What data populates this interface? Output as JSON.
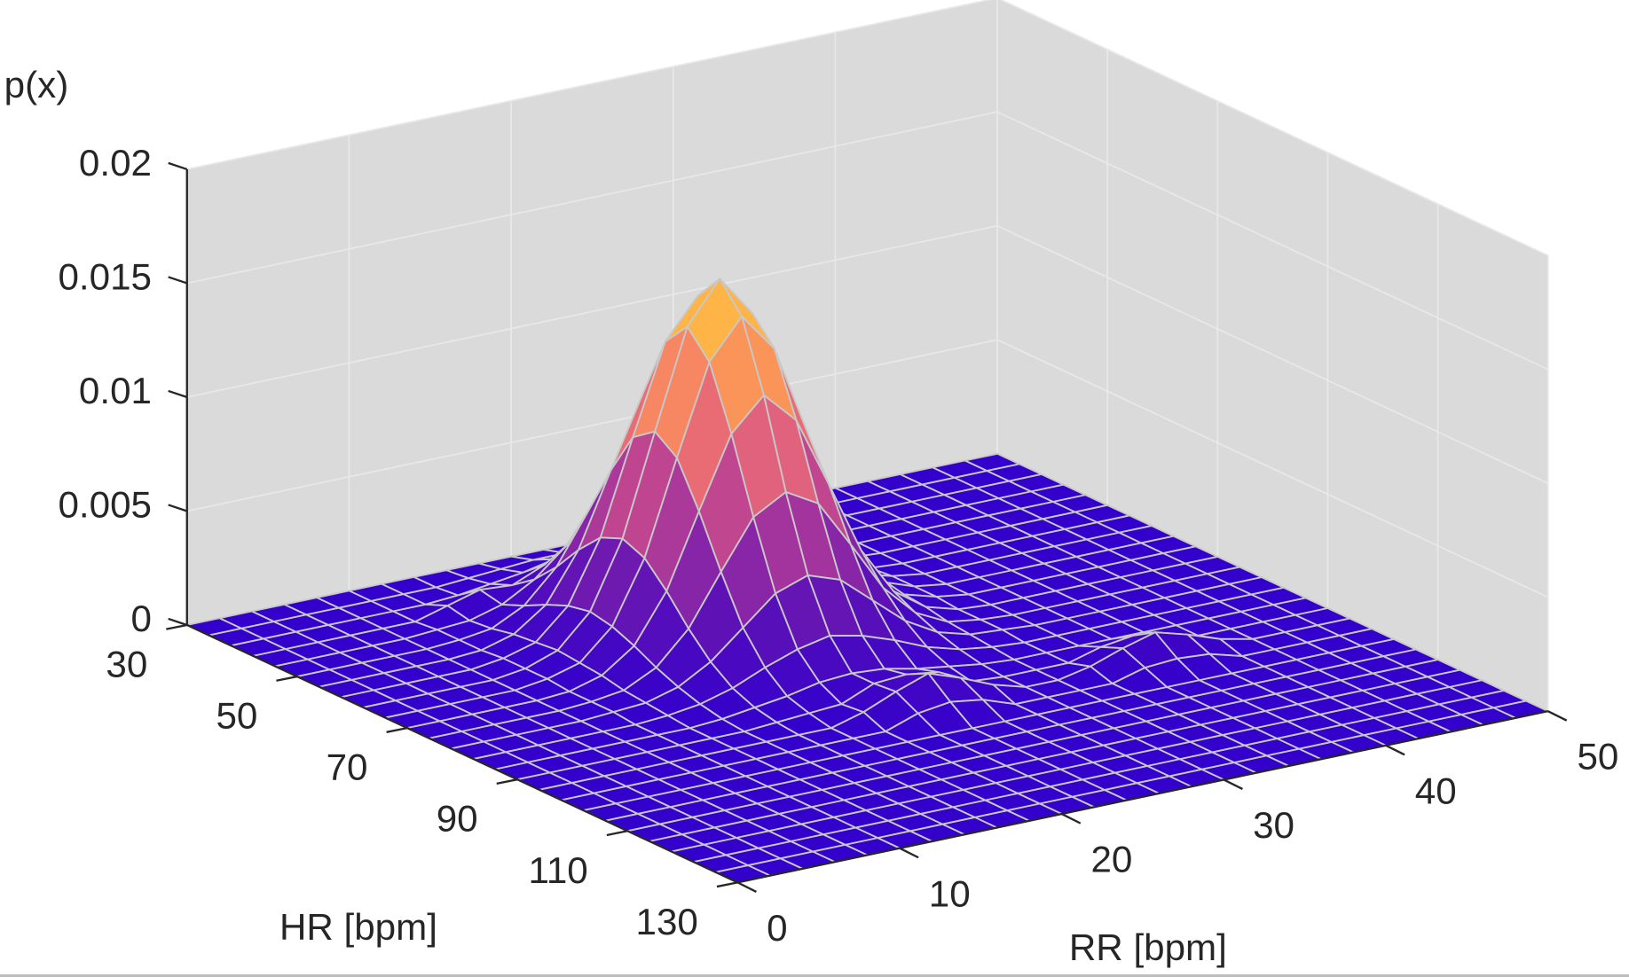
{
  "chart_data": {
    "type": "surface",
    "title": "",
    "xlabel": "HR [bpm]",
    "ylabel": "RR [bpm]",
    "zlabel": "p(x)",
    "xlim": [
      30,
      130
    ],
    "ylim": [
      0,
      50
    ],
    "zlim": [
      0,
      0.02
    ],
    "grid": true,
    "x_ticks": [
      "30",
      "50",
      "70",
      "90",
      "110",
      "130"
    ],
    "x_tick_values": [
      30,
      50,
      70,
      90,
      110,
      130
    ],
    "y_ticks": [
      "0",
      "10",
      "20",
      "30",
      "40",
      "50"
    ],
    "y_tick_values": [
      0,
      10,
      20,
      30,
      40,
      50
    ],
    "z_ticks": [
      "0",
      "0.005",
      "0.01",
      "0.015",
      "0.02"
    ],
    "z_tick_values": [
      0,
      0.005,
      0.01,
      0.015,
      0.02
    ],
    "x": [
      30,
      34,
      38,
      42,
      46,
      50,
      54,
      58,
      62,
      66,
      70,
      74,
      78,
      82,
      86,
      90,
      94,
      98,
      102,
      106,
      110,
      114,
      118,
      122,
      126,
      130
    ],
    "y": [
      0,
      2,
      4,
      6,
      8,
      10,
      12,
      14,
      16,
      18,
      20,
      22,
      24,
      26,
      28,
      30,
      32,
      34,
      36,
      38,
      40,
      42,
      44,
      46,
      48,
      50
    ],
    "z": [
      [
        0,
        0,
        0,
        0,
        0,
        0,
        0,
        0,
        0,
        0,
        0,
        0,
        0,
        0,
        0,
        0,
        0,
        0,
        0,
        0,
        0,
        0,
        0,
        0,
        0,
        0
      ],
      [
        0,
        0,
        0,
        0,
        0,
        0,
        0,
        0,
        0.0001,
        0.0002,
        0.0003,
        0.0003,
        0.0003,
        0.0002,
        0.0001,
        0,
        0,
        0,
        0,
        0,
        0,
        0,
        0,
        0,
        0,
        0
      ],
      [
        0,
        0,
        0,
        0,
        0,
        0,
        0,
        0.0001,
        0.0003,
        0.0005,
        0.0008,
        0.0009,
        0.0008,
        0.0005,
        0.0003,
        0.0001,
        0,
        0,
        0,
        0,
        0,
        0,
        0,
        0,
        0,
        0
      ],
      [
        0,
        0,
        0,
        0,
        0,
        0,
        0.0004,
        0.0008,
        0.0007,
        0.0013,
        0.0018,
        0.0021,
        0.0018,
        0.0013,
        0.0007,
        0.0003,
        0.0001,
        0,
        0,
        0,
        0,
        0,
        0,
        0,
        0,
        0
      ],
      [
        0,
        0,
        0,
        0,
        0,
        0.0001,
        0.0002,
        0.0006,
        0.0014,
        0.0026,
        0.0038,
        0.0043,
        0.0038,
        0.0026,
        0.0014,
        0.0006,
        0.0002,
        0.0001,
        0,
        0,
        0,
        0,
        0,
        0,
        0,
        0
      ],
      [
        0,
        0,
        0,
        0,
        0,
        0.0001,
        0.0003,
        0.001,
        0.0024,
        0.0046,
        0.0067,
        0.0075,
        0.0067,
        0.0046,
        0.0024,
        0.001,
        0.0003,
        0.0001,
        0,
        0,
        0,
        0,
        0,
        0,
        0,
        0
      ],
      [
        0,
        0,
        0,
        0,
        0,
        0.0001,
        0.0005,
        0.0015,
        0.0036,
        0.0068,
        0.0099,
        0.0113,
        0.0099,
        0.0068,
        0.0036,
        0.0015,
        0.0005,
        0.0001,
        0,
        0,
        0,
        0,
        0,
        0,
        0,
        0
      ],
      [
        0,
        0,
        0,
        0,
        0,
        0.0002,
        0.0006,
        0.0019,
        0.0046,
        0.0087,
        0.0126,
        0.0143,
        0.0126,
        0.0087,
        0.0046,
        0.0019,
        0.0006,
        0.0002,
        0,
        0,
        0,
        0,
        0,
        0,
        0,
        0
      ],
      [
        0,
        0,
        0,
        0,
        0,
        0.0002,
        0.0007,
        0.0021,
        0.005,
        0.0094,
        0.0137,
        0.0155,
        0.0137,
        0.0094,
        0.005,
        0.0021,
        0.0007,
        0.0002,
        0,
        0,
        0,
        0,
        0,
        0,
        0,
        0
      ],
      [
        0,
        0,
        0,
        0,
        0,
        0.0002,
        0.0006,
        0.0019,
        0.0046,
        0.0087,
        0.0126,
        0.0143,
        0.0126,
        0.0087,
        0.0046,
        0.0019,
        0.0006,
        0.0002,
        0,
        0,
        0,
        0,
        0,
        0,
        0,
        0
      ],
      [
        0,
        0,
        0,
        0,
        0,
        0.0001,
        0.0005,
        0.0015,
        0.0036,
        0.0068,
        0.0099,
        0.0113,
        0.0099,
        0.0068,
        0.0036,
        0.0015,
        0.0005,
        0.0001,
        0,
        0,
        0,
        0,
        0,
        0,
        0,
        0
      ],
      [
        0,
        0,
        0,
        0,
        0,
        0.0001,
        0.0003,
        0.001,
        0.0024,
        0.0046,
        0.0067,
        0.0075,
        0.0067,
        0.0046,
        0.0024,
        0.001,
        0.0003,
        0.0001,
        0,
        0,
        0,
        0,
        0,
        0,
        0,
        0
      ],
      [
        0,
        0,
        0,
        0,
        0,
        0.0001,
        0.0002,
        0.0006,
        0.0014,
        0.0026,
        0.0038,
        0.0043,
        0.0038,
        0.0026,
        0.0014,
        0.0006,
        0.0002,
        0.0001,
        0,
        0,
        0,
        0,
        0,
        0,
        0,
        0
      ],
      [
        0,
        0,
        0,
        0,
        0,
        0,
        0.0001,
        0.0003,
        0.0007,
        0.0013,
        0.0018,
        0.0021,
        0.0018,
        0.0013,
        0.0007,
        0.0003,
        0.0001,
        0,
        0,
        0,
        0,
        0,
        0,
        0,
        0,
        0
      ],
      [
        0,
        0,
        0,
        0,
        0,
        0,
        0,
        0.0001,
        0.0003,
        0.0005,
        0.0008,
        0.0009,
        0.0008,
        0.0005,
        0.0003,
        0.0001,
        0,
        0,
        0,
        0,
        0,
        0,
        0,
        0,
        0,
        0
      ],
      [
        0,
        0,
        0,
        0,
        0,
        0,
        0,
        0,
        0.0001,
        0.0002,
        0.0003,
        0.0009,
        0.001,
        0.0008,
        0.0001,
        0,
        0,
        0,
        0.0004,
        0.0006,
        0.0004,
        0,
        0,
        0,
        0,
        0
      ],
      [
        0,
        0,
        0,
        0,
        0,
        0,
        0,
        0,
        0,
        0,
        0.0004,
        0.001,
        0.0015,
        0.001,
        0.0004,
        0,
        0,
        0.0003,
        0.0008,
        0.0012,
        0.0008,
        0.0003,
        0,
        0,
        0,
        0
      ],
      [
        0,
        0,
        0,
        0,
        0,
        0,
        0,
        0,
        0,
        0,
        0,
        0.0005,
        0.0007,
        0.0005,
        0,
        0,
        0,
        0,
        0.0004,
        0.0005,
        0.0004,
        0,
        0,
        0,
        0,
        0
      ],
      [
        0,
        0,
        0,
        0,
        0,
        0,
        0,
        0,
        0,
        0,
        0,
        0,
        0,
        0,
        0,
        0,
        0,
        0,
        0,
        0,
        0,
        0,
        0,
        0,
        0,
        0
      ],
      [
        0,
        0,
        0,
        0,
        0,
        0,
        0,
        0,
        0,
        0,
        0,
        0,
        0,
        0,
        0,
        0,
        0,
        0,
        0,
        0,
        0,
        0,
        0,
        0,
        0,
        0
      ],
      [
        0,
        0,
        0,
        0,
        0,
        0,
        0,
        0,
        0,
        0,
        0,
        0,
        0,
        0,
        0,
        0,
        0,
        0,
        0,
        0,
        0,
        0,
        0,
        0,
        0,
        0
      ],
      [
        0,
        0,
        0,
        0,
        0,
        0,
        0,
        0,
        0,
        0,
        0,
        0,
        0,
        0,
        0,
        0,
        0,
        0,
        0,
        0,
        0,
        0,
        0,
        0,
        0,
        0
      ],
      [
        0,
        0,
        0,
        0,
        0,
        0,
        0,
        0,
        0,
        0,
        0,
        0,
        0,
        0,
        0,
        0,
        0,
        0,
        0,
        0,
        0,
        0,
        0,
        0,
        0,
        0
      ],
      [
        0,
        0,
        0,
        0,
        0,
        0,
        0,
        0,
        0,
        0,
        0,
        0,
        0,
        0,
        0,
        0,
        0,
        0,
        0,
        0,
        0,
        0,
        0,
        0,
        0,
        0
      ],
      [
        0,
        0,
        0,
        0,
        0,
        0,
        0,
        0,
        0,
        0,
        0,
        0,
        0,
        0,
        0,
        0,
        0,
        0,
        0,
        0,
        0,
        0,
        0,
        0,
        0,
        0
      ],
      [
        0,
        0,
        0,
        0,
        0,
        0,
        0,
        0,
        0,
        0,
        0,
        0,
        0,
        0,
        0,
        0,
        0,
        0,
        0,
        0,
        0,
        0,
        0,
        0,
        0,
        0
      ]
    ],
    "colormap": [
      "#3300cc",
      "#5a10b8",
      "#9a2fa0",
      "#d0508a",
      "#f57a6a",
      "#fda24f",
      "#ffcd3a"
    ],
    "edge_color": "#c8c8c8",
    "wall_color": "#dadada",
    "wall_grid_color": "#e8e8e8",
    "axis_color": "#262626"
  }
}
